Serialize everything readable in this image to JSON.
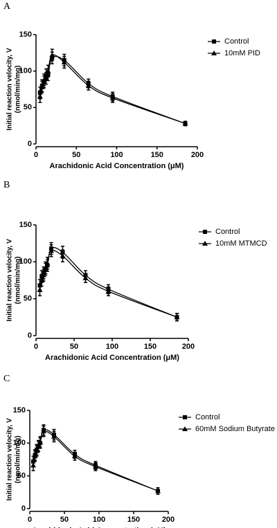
{
  "chart_data": [
    {
      "type": "scatter",
      "title": "A",
      "xlabel": "Arachidonic Acid Concentration (μM)",
      "ylabel": [
        "Initial reaction velocity, V",
        "(nmol/min/mg)"
      ],
      "xlim": [
        0,
        200
      ],
      "xticks": [
        0,
        50,
        100,
        150,
        200
      ],
      "ylim": [
        0,
        150
      ],
      "yticks": [
        0,
        50,
        100,
        150
      ],
      "x": [
        5,
        7.5,
        10,
        12.5,
        15,
        20,
        35,
        65,
        95,
        185
      ],
      "series": [
        {
          "name": "Control",
          "color": "#000000",
          "marker": "square",
          "values": [
            70,
            80,
            85,
            90,
            95,
            118,
            115,
            83,
            65,
            28
          ],
          "errors": [
            8,
            8,
            8,
            8,
            8,
            8,
            8,
            6,
            6,
            3
          ]
        },
        {
          "name": "10mM PID",
          "color": "#000000",
          "marker": "triangle",
          "values": [
            65,
            78,
            88,
            95,
            100,
            122,
            112,
            80,
            63,
            28
          ],
          "errors": [
            8,
            8,
            8,
            8,
            8,
            8,
            8,
            6,
            6,
            3
          ]
        }
      ],
      "legend": "right"
    },
    {
      "type": "scatter",
      "title": "B",
      "xlabel": "Arachidonic Acid Concentration (μM)",
      "ylabel": [
        "Initial reaction velocity, V",
        "(nmol/min/mg)"
      ],
      "xlim": [
        0,
        200
      ],
      "xticks": [
        0,
        50,
        100,
        150,
        200
      ],
      "ylim": [
        0,
        150
      ],
      "yticks": [
        0,
        50,
        100,
        150
      ],
      "x": [
        5,
        7.5,
        10,
        12.5,
        15,
        20,
        35,
        65,
        95,
        185
      ],
      "series": [
        {
          "name": "Control",
          "color": "#000000",
          "marker": "square",
          "values": [
            68,
            80,
            85,
            90,
            95,
            118,
            113,
            82,
            63,
            25
          ],
          "errors": [
            8,
            8,
            8,
            8,
            8,
            8,
            8,
            6,
            6,
            5
          ]
        },
        {
          "name": "10mM MTMCD",
          "color": "#000000",
          "marker": "triangle",
          "values": [
            62,
            75,
            82,
            92,
            98,
            115,
            108,
            78,
            60,
            25
          ],
          "errors": [
            8,
            8,
            8,
            8,
            8,
            8,
            8,
            6,
            6,
            5
          ]
        }
      ],
      "legend": "right"
    },
    {
      "type": "scatter",
      "title": "C",
      "xlabel": "Arachidonic Acid Concentration (μM)",
      "ylabel": [
        "Initial reaction velocity, V",
        "(nmol/min/mg)"
      ],
      "xlim": [
        0,
        200
      ],
      "xticks": [
        0,
        50,
        100,
        150,
        200
      ],
      "ylim": [
        0,
        150
      ],
      "yticks": [
        0,
        50,
        100,
        150
      ],
      "x": [
        5,
        7.5,
        10,
        12.5,
        15,
        20,
        35,
        65,
        95,
        185
      ],
      "series": [
        {
          "name": "Control",
          "color": "#000000",
          "marker": "square",
          "values": [
            72,
            82,
            90,
            95,
            100,
            120,
            113,
            83,
            66,
            27
          ],
          "errors": [
            8,
            8,
            8,
            8,
            8,
            8,
            8,
            6,
            6,
            5
          ]
        },
        {
          "name": "60mM Sodium Butyrate",
          "color": "#000000",
          "marker": "triangle",
          "values": [
            66,
            80,
            88,
            96,
            102,
            118,
            110,
            80,
            64,
            27
          ],
          "errors": [
            8,
            8,
            8,
            8,
            8,
            8,
            8,
            6,
            6,
            5
          ]
        }
      ],
      "legend": "right"
    }
  ]
}
